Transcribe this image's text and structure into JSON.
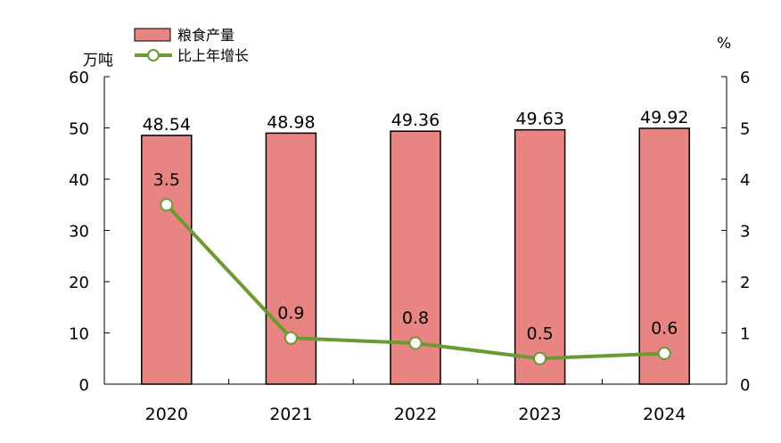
{
  "chart_data": {
    "type": "bar+line",
    "categories": [
      "2020",
      "2021",
      "2022",
      "2023",
      "2024"
    ],
    "series": [
      {
        "name": "粮食产量",
        "type": "bar",
        "axis": "left",
        "values": [
          48.54,
          48.98,
          49.36,
          49.63,
          49.92
        ],
        "labels": [
          "48.54",
          "48.98",
          "49.36",
          "49.63",
          "49.92"
        ]
      },
      {
        "name": "比上年增长",
        "type": "line",
        "axis": "right",
        "values": [
          3.5,
          0.9,
          0.8,
          0.5,
          0.6
        ],
        "labels": [
          "3.5",
          "0.9",
          "0.8",
          "0.5",
          "0.6"
        ]
      }
    ],
    "left_axis": {
      "unit": "万吨",
      "ylim": [
        0,
        60
      ],
      "ticks": [
        "0",
        "10",
        "20",
        "30",
        "40",
        "50",
        "60"
      ]
    },
    "right_axis": {
      "unit": "%",
      "ylim": [
        0,
        6
      ],
      "ticks": [
        "0",
        "1",
        "2",
        "3",
        "4",
        "5",
        "6"
      ]
    },
    "grid": false,
    "legend_position": "top-left",
    "colors": {
      "bar_fill": "#e88482",
      "bar_stroke": "#000000",
      "line": "#6b9a31",
      "marker_fill": "#ffffff",
      "axis": "#000000"
    }
  }
}
